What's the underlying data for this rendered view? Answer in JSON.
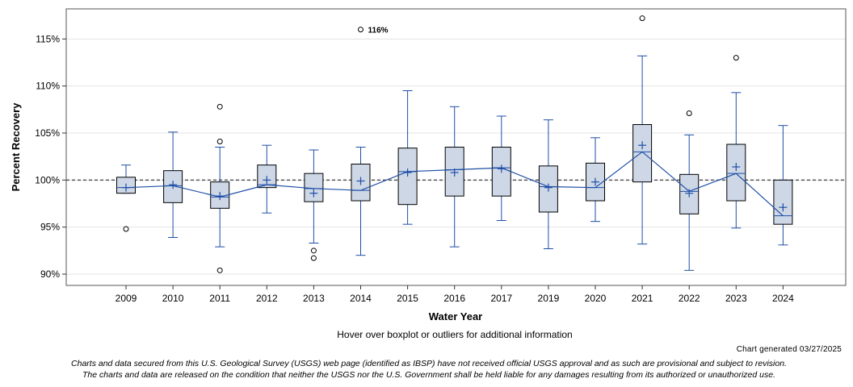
{
  "chart_data": {
    "type": "boxplot",
    "xlabel": "Water Year",
    "ylabel": "Percent Recovery",
    "ylim": [
      88.8,
      118.2
    ],
    "y_ticks": [
      90,
      95,
      100,
      105,
      110,
      115
    ],
    "y_tick_labels": [
      "90%",
      "95%",
      "100%",
      "105%",
      "110%",
      "115%"
    ],
    "reference_line": 100,
    "categories": [
      "2009",
      "2010",
      "2011",
      "2012",
      "2013",
      "2014",
      "2015",
      "2016",
      "2017",
      "2019",
      "2020",
      "2021",
      "2022",
      "2023",
      "2024"
    ],
    "boxes": [
      {
        "year": "2009",
        "whisker_low": 98.6,
        "q1": 98.6,
        "median": 99.2,
        "q3": 100.3,
        "whisker_high": 101.6,
        "mean": 99.2,
        "outliers": [
          94.8
        ]
      },
      {
        "year": "2010",
        "whisker_low": 93.9,
        "q1": 97.6,
        "median": 99.4,
        "q3": 101.0,
        "whisker_high": 105.1,
        "mean": 99.5,
        "outliers": []
      },
      {
        "year": "2011",
        "whisker_low": 92.9,
        "q1": 97.0,
        "median": 98.2,
        "q3": 99.8,
        "whisker_high": 103.5,
        "mean": 98.3,
        "outliers": [
          107.8,
          104.1,
          90.4
        ]
      },
      {
        "year": "2012",
        "whisker_low": 96.5,
        "q1": 99.2,
        "median": 99.5,
        "q3": 101.6,
        "whisker_high": 103.7,
        "mean": 100.0,
        "outliers": []
      },
      {
        "year": "2013",
        "whisker_low": 93.3,
        "q1": 97.7,
        "median": 99.1,
        "q3": 100.7,
        "whisker_high": 103.2,
        "mean": 98.6,
        "outliers": [
          92.5,
          91.7
        ]
      },
      {
        "year": "2014",
        "whisker_low": 92.0,
        "q1": 97.8,
        "median": 98.9,
        "q3": 101.7,
        "whisker_high": 103.5,
        "mean": 99.9,
        "outliers": [
          116.0
        ]
      },
      {
        "year": "2015",
        "whisker_low": 95.3,
        "q1": 97.4,
        "median": 100.9,
        "q3": 103.4,
        "whisker_high": 109.5,
        "mean": 100.8,
        "outliers": []
      },
      {
        "year": "2016",
        "whisker_low": 92.9,
        "q1": 98.3,
        "median": 101.1,
        "q3": 103.5,
        "whisker_high": 107.8,
        "mean": 100.8,
        "outliers": []
      },
      {
        "year": "2017",
        "whisker_low": 95.7,
        "q1": 98.3,
        "median": 101.3,
        "q3": 103.5,
        "whisker_high": 106.8,
        "mean": 101.2,
        "outliers": []
      },
      {
        "year": "2019",
        "whisker_low": 92.7,
        "q1": 96.6,
        "median": 99.3,
        "q3": 101.5,
        "whisker_high": 106.4,
        "mean": 99.2,
        "outliers": []
      },
      {
        "year": "2020",
        "whisker_low": 95.6,
        "q1": 97.8,
        "median": 99.2,
        "q3": 101.8,
        "whisker_high": 104.5,
        "mean": 99.8,
        "outliers": []
      },
      {
        "year": "2021",
        "whisker_low": 93.2,
        "q1": 99.8,
        "median": 103.0,
        "q3": 105.9,
        "whisker_high": 113.2,
        "mean": 103.7,
        "outliers": [
          117.2
        ]
      },
      {
        "year": "2022",
        "whisker_low": 90.4,
        "q1": 96.4,
        "median": 98.8,
        "q3": 100.6,
        "whisker_high": 104.8,
        "mean": 98.6,
        "outliers": [
          107.1
        ]
      },
      {
        "year": "2023",
        "whisker_low": 94.9,
        "q1": 97.8,
        "median": 100.7,
        "q3": 103.8,
        "whisker_high": 109.3,
        "mean": 101.4,
        "outliers": [
          113.0
        ]
      },
      {
        "year": "2024",
        "whisker_low": 93.1,
        "q1": 95.3,
        "median": 96.2,
        "q3": 100.0,
        "whisker_high": 105.8,
        "mean": 97.1,
        "outliers": []
      }
    ],
    "median_line": "connects medians",
    "annotation": {
      "year": "2014",
      "value": 116.0,
      "text": "116%"
    }
  },
  "colors": {
    "box_fill": "#cdd7e6",
    "box_stroke": "#000000",
    "series": "#1f4ea6",
    "grid": "#e3e3e3",
    "reference": "#555555"
  },
  "notes": {
    "hover": "Hover over boxplot or outliers for additional information",
    "generated": "Chart generated 03/27/2025",
    "disclaimer_1": "Charts and data secured from this U.S. Geological Survey (USGS) web page (identified as IBSP) have not received official USGS approval and as such are provisional and subject to revision.",
    "disclaimer_2": "The charts and data are released on the condition that neither the USGS nor the U.S. Government shall be held liable for any damages resulting from its authorized or unauthorized use."
  }
}
